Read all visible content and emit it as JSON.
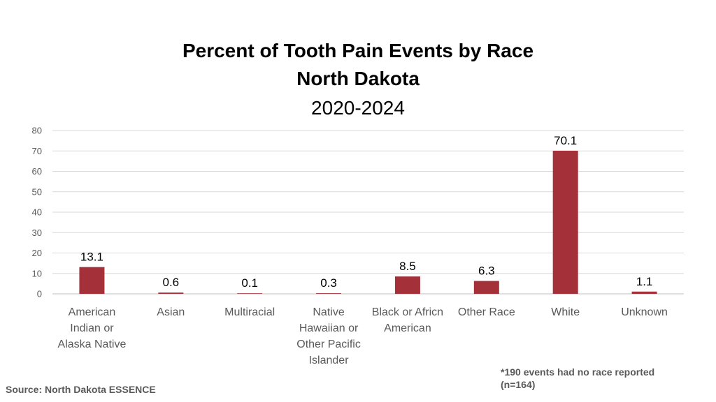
{
  "chart_data": {
    "type": "bar",
    "title": "Percent of Tooth Pain Events by Race",
    "subtitle": "North Dakota",
    "period": "2020-2024",
    "categories": [
      [
        "American",
        "Indian or",
        "Alaska Native"
      ],
      [
        "Asian"
      ],
      [
        "Multiracial"
      ],
      [
        "Native",
        "Hawaiian or",
        "Other Pacific",
        "Islander"
      ],
      [
        "Black or Africn",
        "American"
      ],
      [
        "Other Race"
      ],
      [
        "White"
      ],
      [
        "Unknown"
      ]
    ],
    "values": [
      13.1,
      0.6,
      0.1,
      0.3,
      8.5,
      6.3,
      70.1,
      1.1
    ],
    "value_labels": [
      "13.1",
      "0.6",
      "0.1",
      "0.3",
      "8.5",
      "6.3",
      "70.1",
      "1.1"
    ],
    "ylim": [
      0,
      80
    ],
    "yticks": [
      0,
      10,
      20,
      30,
      40,
      50,
      60,
      70,
      80
    ],
    "grid": true,
    "bar_color": "#A4303A",
    "xlabel": "",
    "ylabel": ""
  },
  "footnote": {
    "line1": "*190 events had no race reported",
    "line2": "(n=164)"
  },
  "source": "Source: North Dakota ESSENCE"
}
